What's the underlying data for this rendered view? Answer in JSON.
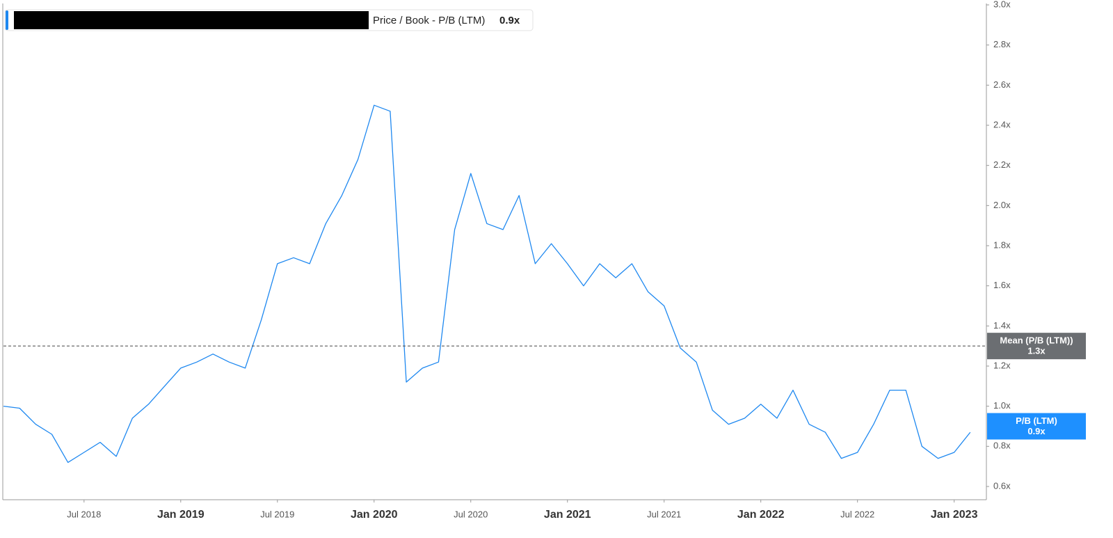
{
  "chart_data": {
    "type": "line",
    "series": [
      {
        "name": "Price / Book - P/B (LTM)",
        "color": "#1e88f0",
        "values": [
          1.0,
          0.99,
          0.91,
          0.86,
          0.72,
          0.77,
          0.82,
          0.75,
          0.94,
          1.01,
          1.1,
          1.19,
          1.22,
          1.26,
          1.22,
          1.19,
          1.43,
          1.71,
          1.74,
          1.71,
          1.91,
          2.05,
          2.23,
          2.5,
          2.47,
          1.12,
          1.19,
          1.22,
          1.88,
          2.16,
          1.91,
          1.88,
          2.05,
          1.71,
          1.81,
          1.71,
          1.6,
          1.71,
          1.64,
          1.71,
          1.57,
          1.5,
          1.29,
          1.22,
          0.98,
          0.91,
          0.94,
          1.01,
          0.94,
          1.08,
          0.91,
          0.87,
          0.74,
          0.77,
          0.91,
          1.08,
          1.08,
          0.8,
          0.74,
          0.77,
          0.87
        ]
      }
    ],
    "x": [
      "2018-02",
      "2018-03",
      "2018-04",
      "2018-05",
      "2018-06",
      "2018-07",
      "2018-08",
      "2018-09",
      "2018-10",
      "2018-11",
      "2018-12",
      "2019-01",
      "2019-02",
      "2019-03",
      "2019-04",
      "2019-05",
      "2019-06",
      "2019-07",
      "2019-08",
      "2019-09",
      "2019-10",
      "2019-11",
      "2019-12",
      "2020-01",
      "2020-02",
      "2020-03",
      "2020-04",
      "2020-05",
      "2020-06",
      "2020-07",
      "2020-08",
      "2020-09",
      "2020-10",
      "2020-11",
      "2020-12",
      "2021-01",
      "2021-02",
      "2021-03",
      "2021-04",
      "2021-05",
      "2021-06",
      "2021-07",
      "2021-08",
      "2021-09",
      "2021-10",
      "2021-11",
      "2021-12",
      "2022-01",
      "2022-02",
      "2022-03",
      "2022-04",
      "2022-05",
      "2022-06",
      "2022-07",
      "2022-08",
      "2022-09",
      "2022-10",
      "2022-11",
      "2022-12",
      "2023-01",
      "2023-02"
    ],
    "xlim": [
      "2018-02",
      "2023-03"
    ],
    "xticks": [
      {
        "value": "2018-07",
        "label": "Jul 2018"
      },
      {
        "value": "2019-01",
        "label": "Jan 2019"
      },
      {
        "value": "2019-07",
        "label": "Jul 2019"
      },
      {
        "value": "2020-01",
        "label": "Jan 2020"
      },
      {
        "value": "2020-07",
        "label": "Jul 2020"
      },
      {
        "value": "2021-01",
        "label": "Jan 2021"
      },
      {
        "value": "2021-07",
        "label": "Jul 2021"
      },
      {
        "value": "2022-01",
        "label": "Jan 2022"
      },
      {
        "value": "2022-07",
        "label": "Jul 2022"
      },
      {
        "value": "2023-01",
        "label": "Jan 2023"
      }
    ],
    "ylim": [
      0.534,
      3.007
    ],
    "yticks": [
      {
        "value": 0.6,
        "label": "0.6x"
      },
      {
        "value": 0.8,
        "label": "0.8x"
      },
      {
        "value": 1.0,
        "label": "1.0x"
      },
      {
        "value": 1.2,
        "label": "1.2x"
      },
      {
        "value": 1.4,
        "label": "1.4x"
      },
      {
        "value": 1.6,
        "label": "1.6x"
      },
      {
        "value": 1.8,
        "label": "1.8x"
      },
      {
        "value": 2.0,
        "label": "2.0x"
      },
      {
        "value": 2.2,
        "label": "2.2x"
      },
      {
        "value": 2.4,
        "label": "2.4x"
      },
      {
        "value": 2.6,
        "label": "2.6x"
      },
      {
        "value": 2.8,
        "label": "2.8x"
      },
      {
        "value": 3.0,
        "label": "3.0x"
      }
    ],
    "mean": {
      "label": "Mean (P/B (LTM))",
      "value": 1.3,
      "value_label": "1.3x",
      "color": "#6b6e72"
    },
    "current": {
      "label": "P/B (LTM)",
      "value": 0.9,
      "value_label": "0.9x",
      "color": "#1e90ff"
    }
  }
}
